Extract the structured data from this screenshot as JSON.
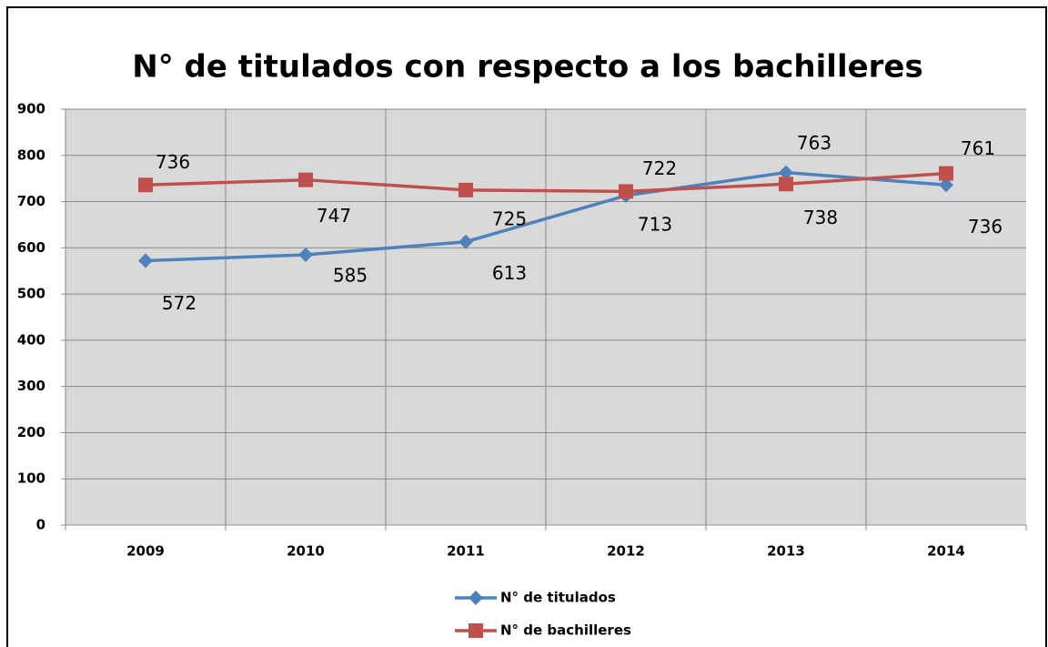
{
  "chart_data": {
    "type": "line",
    "title": "N° de titulados con respecto a los bachilleres",
    "categories": [
      "2009",
      "2010",
      "2011",
      "2012",
      "2013",
      "2014"
    ],
    "series": [
      {
        "name": "N° de titulados",
        "color": "#4f81bd",
        "marker": "diamond",
        "values": [
          572,
          585,
          613,
          713,
          763,
          736
        ]
      },
      {
        "name": "N° de bachilleres",
        "color": "#c0504d",
        "marker": "square",
        "values": [
          736,
          747,
          725,
          722,
          738,
          761
        ]
      }
    ],
    "ylim": [
      0,
      900
    ],
    "yticks": [
      0,
      100,
      200,
      300,
      400,
      500,
      600,
      700,
      800,
      900
    ],
    "grid": true,
    "legend": "bottom"
  }
}
